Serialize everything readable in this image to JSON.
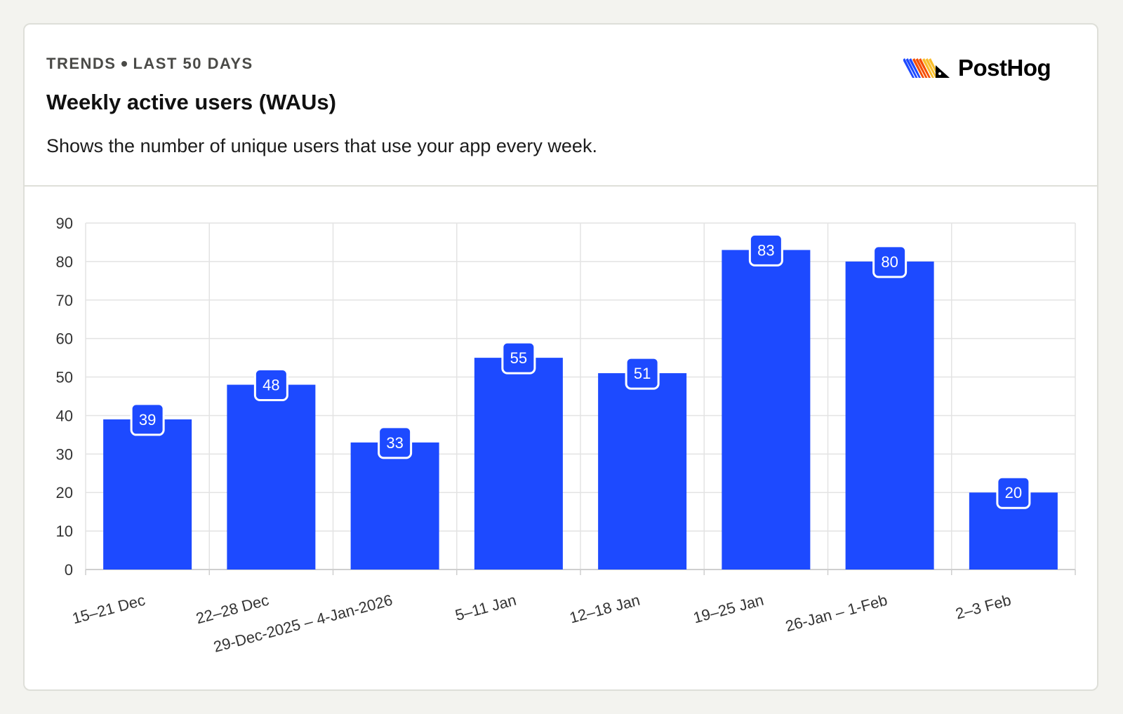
{
  "header": {
    "eyebrow_left": "TRENDS",
    "eyebrow_right": "LAST 50 DAYS",
    "title": "Weekly active users (WAUs)",
    "subtitle": "Shows the number of unique users that use your app every week.",
    "brand": "PostHog"
  },
  "colors": {
    "bar": "#1d4aff",
    "grid": "#e3e3e3",
    "axis_text": "#333333",
    "label_bg": "#1d4aff",
    "label_border": "#ffffff",
    "logo_blue": "#1d4aff",
    "logo_orange": "#f54e00",
    "logo_yellow": "#f9bd2b"
  },
  "chart_data": {
    "type": "bar",
    "categories": [
      "15–21 Dec",
      "22–28 Dec",
      "29-Dec-2025 – 4-Jan-2026",
      "5–11 Jan",
      "12–18 Jan",
      "19–25 Jan",
      "26-Jan – 1-Feb",
      "2–3 Feb"
    ],
    "values": [
      39,
      48,
      33,
      55,
      51,
      83,
      80,
      20
    ],
    "ylim": [
      0,
      90
    ],
    "yticks": [
      0,
      10,
      20,
      30,
      40,
      50,
      60,
      70,
      80,
      90
    ],
    "grid": true,
    "data_labels": true,
    "title": "",
    "xlabel": "",
    "ylabel": ""
  }
}
